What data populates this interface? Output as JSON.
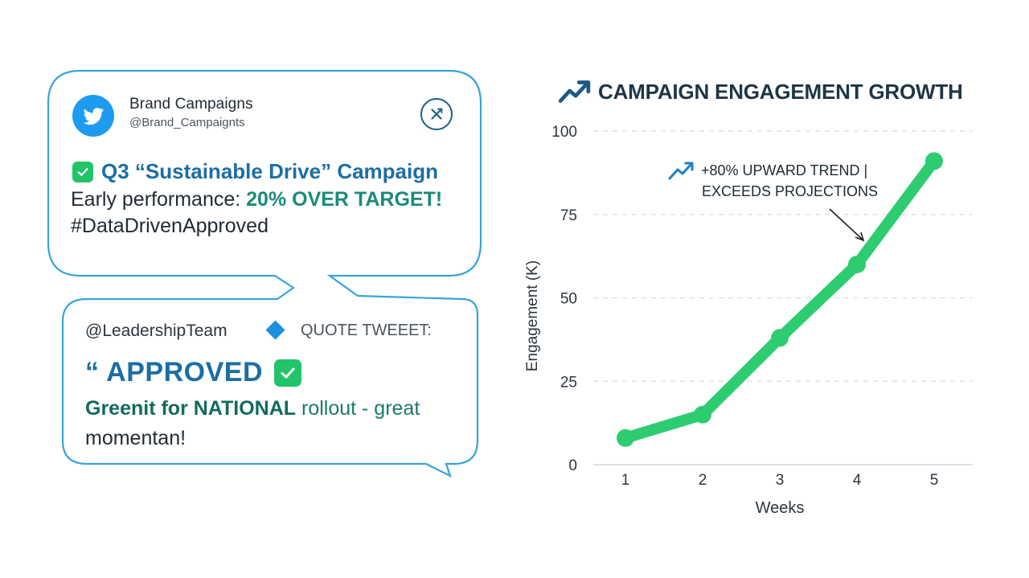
{
  "tweet": {
    "account_name": "Brand Campaigns",
    "handle": "@Brand_Campaignts",
    "avatar_icon": "twitter-bird-icon",
    "action_icon": "x-close-icon",
    "title": "Q3 “Sustainable Drive” Campaign",
    "body_prefix": "Early performance: ",
    "body_highlight": "20% OVER TARGET!",
    "hashtag": "#DataDrivenApproved"
  },
  "quote": {
    "mention": "@LeadershipTeam",
    "label": "QUOTE TWEEET:",
    "approved": "“ APPROVED",
    "line1_a": "Greenit for ",
    "line1_b": "NATIONAL",
    "line1_c": " rollout - great",
    "line2": "momentan!"
  },
  "colors": {
    "accent_blue": "#1c6ea4",
    "brand_blue": "#1d9bf0",
    "approve_green": "#22c46a",
    "line_green": "#2ecc71",
    "teal_text": "#1b8a7a"
  },
  "chart_data": {
    "type": "line",
    "title": "CAMPAIGN ENGAGEMENT GROWTH",
    "xlabel": "Weeks",
    "ylabel": "Engagement (K)",
    "x": [
      1,
      2,
      3,
      4,
      5
    ],
    "y": [
      8,
      15,
      38,
      60,
      91
    ],
    "yticks": [
      0,
      25,
      50,
      75,
      100
    ],
    "ylim": [
      0,
      100
    ],
    "grid": "horizontal-dashed",
    "annotation": {
      "line1": "+80% UPWARD TREND |",
      "line2": "EXCEEDS PROJECTIONS",
      "icon": "trend-up-icon"
    }
  }
}
